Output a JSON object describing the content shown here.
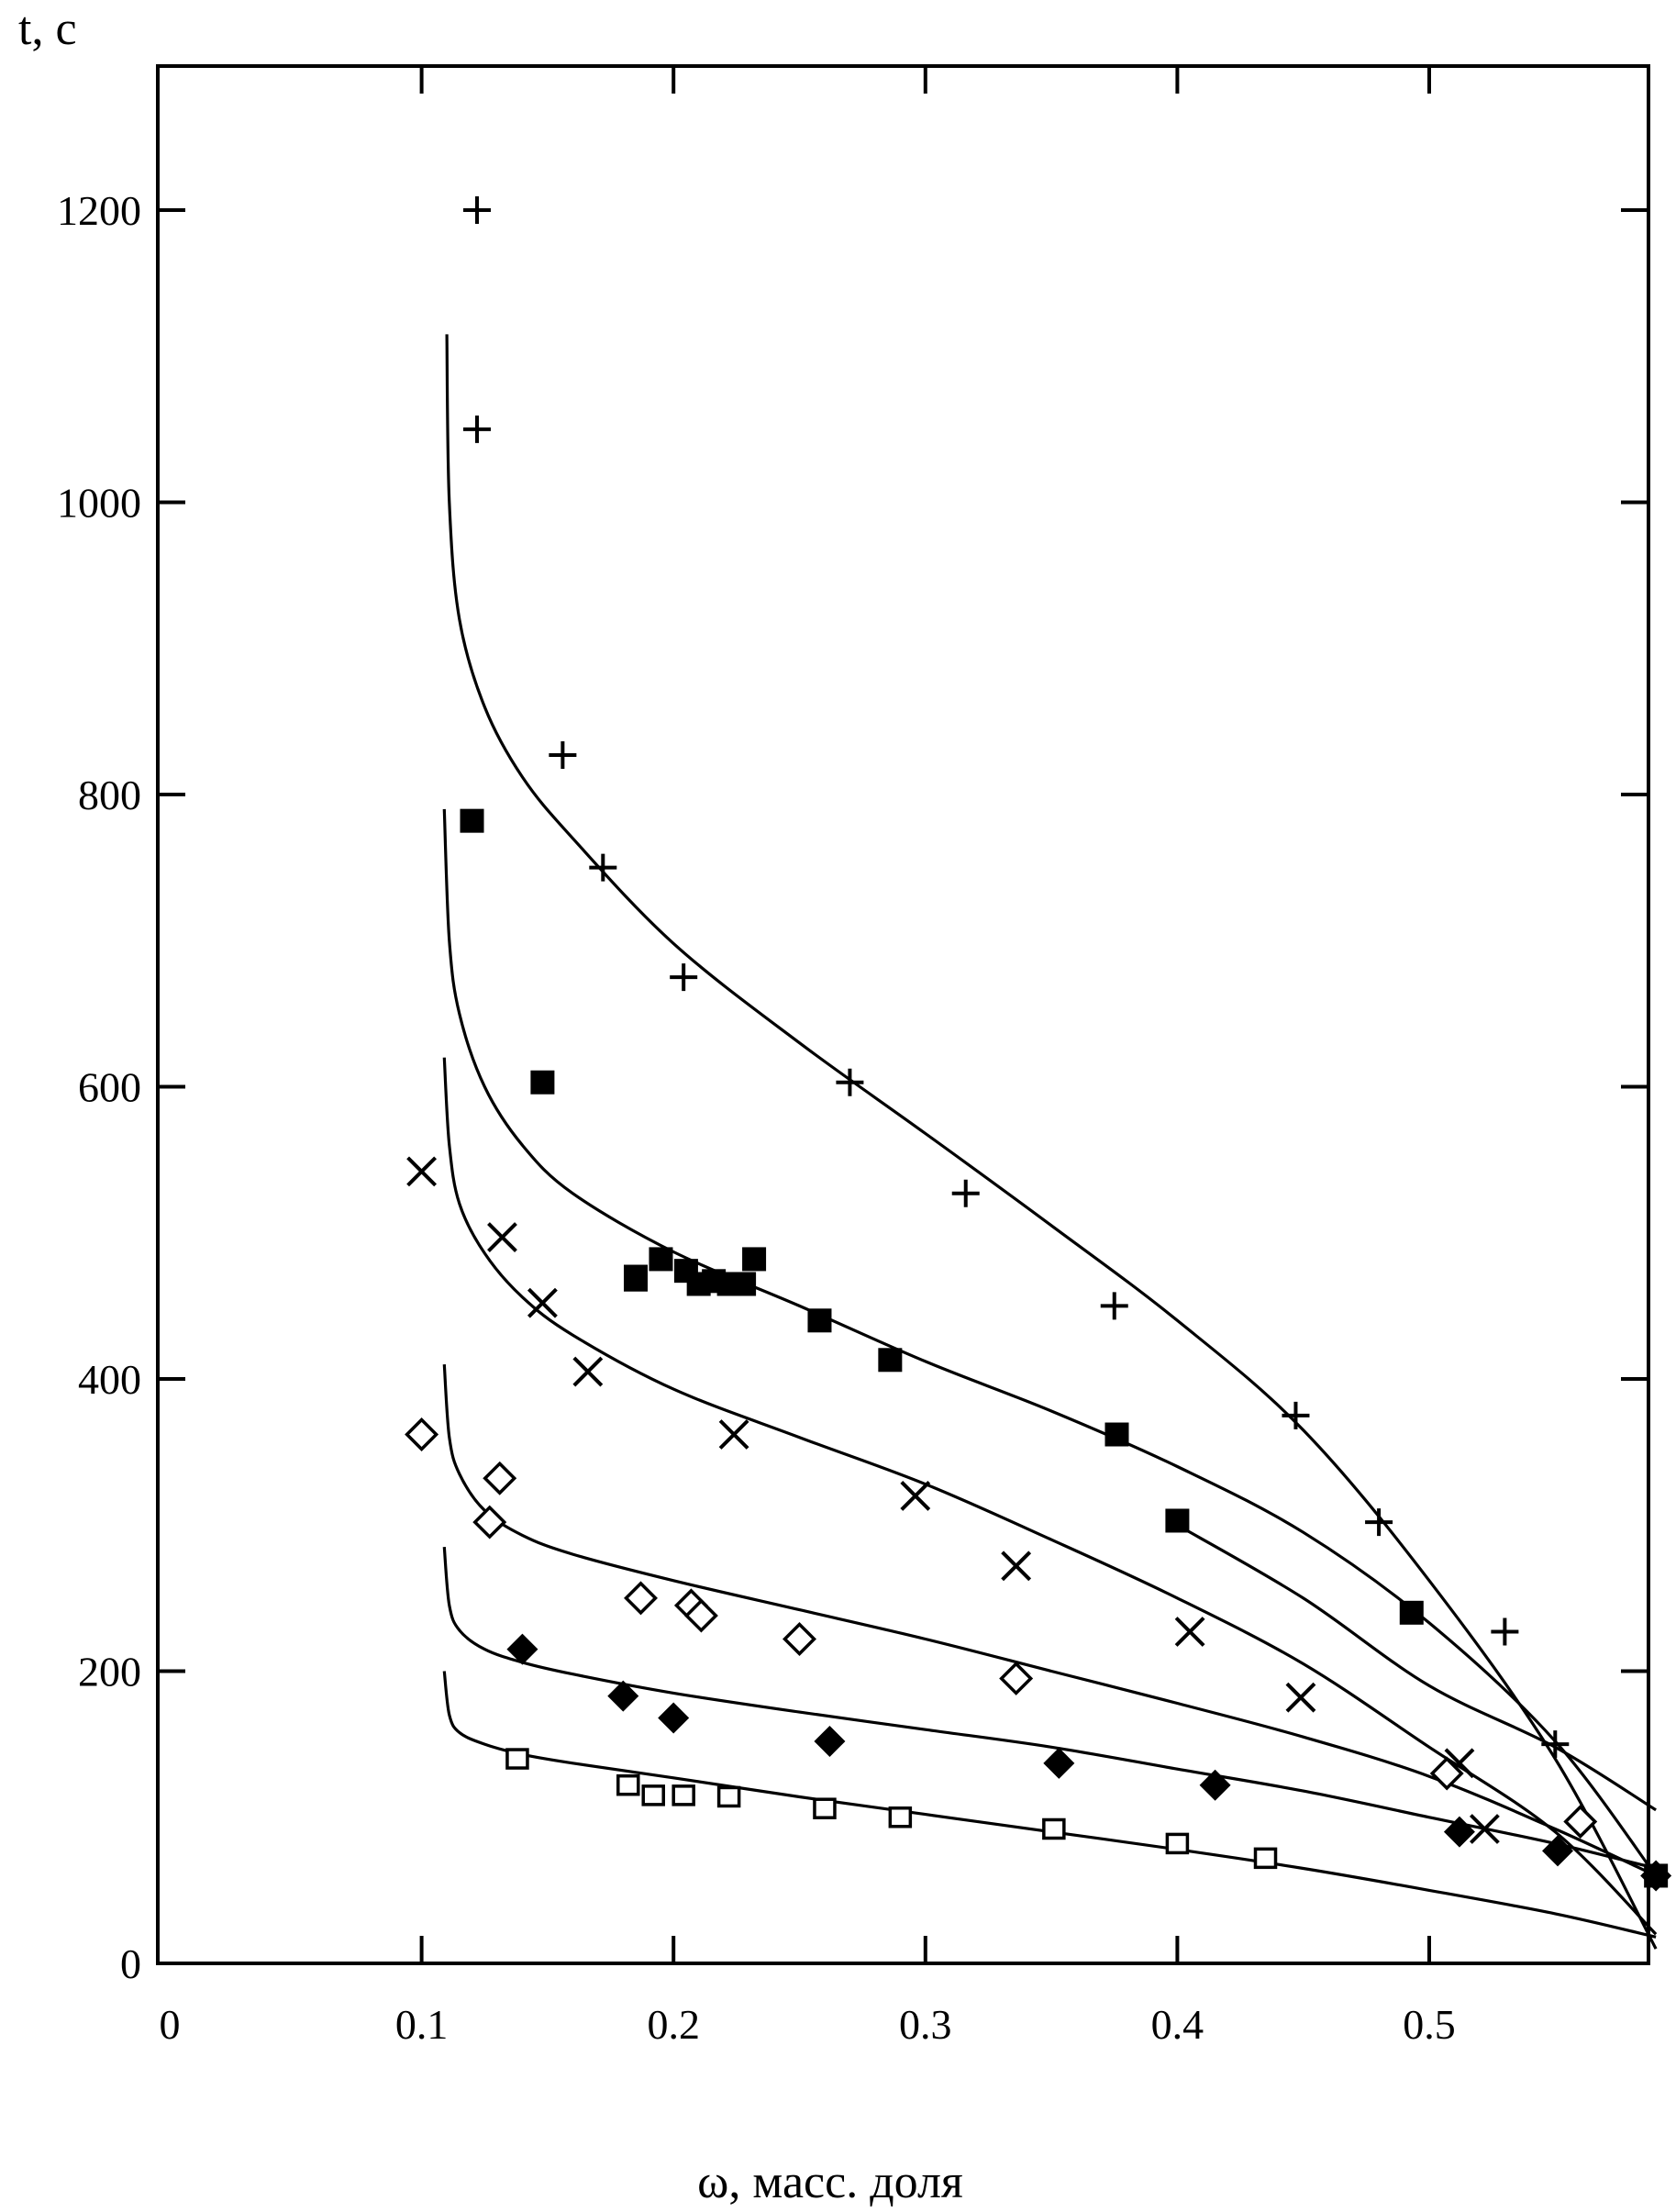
{
  "chart_data": {
    "type": "scatter",
    "title": "",
    "xlabel": "ω, масс. доля",
    "ylabel": "t, с",
    "xlim": [
      0,
      0.59
    ],
    "ylim": [
      0,
      1300
    ],
    "xticks": [
      0,
      0.1,
      0.2,
      0.3,
      0.4,
      0.5
    ],
    "xtick_labels": [
      "0",
      "0.1",
      "0.2",
      "0.3",
      "0.4",
      "0.5"
    ],
    "yticks": [
      0,
      200,
      400,
      600,
      800,
      1000,
      1200
    ],
    "ytick_labels": [
      "0",
      "200",
      "400",
      "600",
      "800",
      "1000",
      "1200"
    ],
    "grid": false,
    "legend": "none",
    "series": [
      {
        "marker": "plus",
        "points": [
          [
            0.122,
            1200
          ],
          [
            0.122,
            1050
          ],
          [
            0.156,
            827
          ],
          [
            0.172,
            750
          ],
          [
            0.204,
            675
          ],
          [
            0.27,
            603
          ],
          [
            0.316,
            527
          ],
          [
            0.375,
            450
          ],
          [
            0.447,
            375
          ],
          [
            0.48,
            302
          ],
          [
            0.53,
            227
          ],
          [
            0.55,
            150
          ]
        ],
        "fit": [
          [
            0.11,
            1115
          ],
          [
            0.111,
            1000
          ],
          [
            0.115,
            920
          ],
          [
            0.125,
            860
          ],
          [
            0.14,
            812
          ],
          [
            0.16,
            770
          ],
          [
            0.2,
            698
          ],
          [
            0.25,
            630
          ],
          [
            0.3,
            568
          ],
          [
            0.35,
            505
          ],
          [
            0.4,
            440
          ],
          [
            0.45,
            365
          ],
          [
            0.5,
            262
          ],
          [
            0.55,
            140
          ],
          [
            0.59,
            10
          ]
        ]
      },
      {
        "marker": "filled-square",
        "points": [
          [
            0.12,
            782
          ],
          [
            0.148,
            603
          ],
          [
            0.185,
            468
          ],
          [
            0.185,
            470
          ],
          [
            0.195,
            482
          ],
          [
            0.205,
            474
          ],
          [
            0.21,
            465
          ],
          [
            0.216,
            467
          ],
          [
            0.222,
            465
          ],
          [
            0.228,
            465
          ],
          [
            0.232,
            482
          ],
          [
            0.258,
            440
          ],
          [
            0.286,
            413
          ],
          [
            0.376,
            362
          ],
          [
            0.4,
            303
          ],
          [
            0.493,
            240
          ],
          [
            0.59,
            60
          ]
        ],
        "fit": [
          [
            0.109,
            790
          ],
          [
            0.111,
            700
          ],
          [
            0.115,
            650
          ],
          [
            0.125,
            600
          ],
          [
            0.14,
            560
          ],
          [
            0.16,
            527
          ],
          [
            0.2,
            487
          ],
          [
            0.25,
            450
          ],
          [
            0.3,
            412
          ],
          [
            0.35,
            378
          ],
          [
            0.4,
            340
          ],
          [
            0.45,
            295
          ],
          [
            0.5,
            233
          ],
          [
            0.55,
            152
          ],
          [
            0.59,
            60
          ]
        ]
      },
      {
        "marker": "cross",
        "points": [
          [
            0.1,
            542
          ],
          [
            0.132,
            497
          ],
          [
            0.148,
            452
          ],
          [
            0.166,
            405
          ],
          [
            0.224,
            362
          ],
          [
            0.296,
            320
          ],
          [
            0.336,
            272
          ],
          [
            0.405,
            227
          ],
          [
            0.449,
            182
          ],
          [
            0.512,
            137
          ],
          [
            0.522,
            92
          ]
        ],
        "fit": [
          [
            0.109,
            620
          ],
          [
            0.111,
            560
          ],
          [
            0.115,
            520
          ],
          [
            0.125,
            486
          ],
          [
            0.14,
            456
          ],
          [
            0.16,
            430
          ],
          [
            0.2,
            393
          ],
          [
            0.25,
            360
          ],
          [
            0.3,
            328
          ],
          [
            0.35,
            290
          ],
          [
            0.4,
            250
          ],
          [
            0.45,
            205
          ],
          [
            0.5,
            148
          ],
          [
            0.55,
            90
          ],
          [
            0.59,
            20
          ]
        ]
      },
      {
        "marker": "open-diamond",
        "points": [
          [
            0.1,
            362
          ],
          [
            0.127,
            302
          ],
          [
            0.131,
            332
          ],
          [
            0.187,
            250
          ],
          [
            0.207,
            245
          ],
          [
            0.211,
            238
          ],
          [
            0.25,
            222
          ],
          [
            0.336,
            195
          ],
          [
            0.507,
            130
          ],
          [
            0.56,
            97
          ]
        ],
        "fit": [
          [
            0.109,
            410
          ],
          [
            0.111,
            360
          ],
          [
            0.115,
            335
          ],
          [
            0.125,
            310
          ],
          [
            0.14,
            293
          ],
          [
            0.16,
            280
          ],
          [
            0.2,
            262
          ],
          [
            0.25,
            242
          ],
          [
            0.3,
            222
          ],
          [
            0.35,
            200
          ],
          [
            0.4,
            178
          ],
          [
            0.45,
            155
          ],
          [
            0.5,
            128
          ],
          [
            0.55,
            92
          ],
          [
            0.59,
            60
          ]
        ]
      },
      {
        "marker": "filled-diamond",
        "points": [
          [
            0.14,
            215
          ],
          [
            0.18,
            183
          ],
          [
            0.2,
            168
          ],
          [
            0.262,
            152
          ],
          [
            0.353,
            137
          ],
          [
            0.415,
            122
          ],
          [
            0.512,
            90
          ],
          [
            0.551,
            77
          ],
          [
            0.59,
            60
          ]
        ],
        "fit": [
          [
            0.109,
            285
          ],
          [
            0.111,
            245
          ],
          [
            0.115,
            228
          ],
          [
            0.125,
            215
          ],
          [
            0.14,
            206
          ],
          [
            0.16,
            198
          ],
          [
            0.2,
            185
          ],
          [
            0.25,
            172
          ],
          [
            0.3,
            160
          ],
          [
            0.35,
            148
          ],
          [
            0.4,
            133
          ],
          [
            0.45,
            118
          ],
          [
            0.5,
            100
          ],
          [
            0.55,
            82
          ],
          [
            0.59,
            65
          ]
        ]
      },
      {
        "marker": "open-square",
        "points": [
          [
            0.138,
            140
          ],
          [
            0.182,
            122
          ],
          [
            0.192,
            115
          ],
          [
            0.204,
            115
          ],
          [
            0.222,
            114
          ],
          [
            0.26,
            106
          ],
          [
            0.29,
            100
          ],
          [
            0.351,
            92
          ],
          [
            0.4,
            82
          ],
          [
            0.435,
            72
          ]
        ],
        "fit": [
          [
            0.109,
            200
          ],
          [
            0.111,
            170
          ],
          [
            0.115,
            158
          ],
          [
            0.125,
            150
          ],
          [
            0.14,
            143
          ],
          [
            0.16,
            137
          ],
          [
            0.2,
            127
          ],
          [
            0.25,
            114
          ],
          [
            0.3,
            102
          ],
          [
            0.35,
            90
          ],
          [
            0.4,
            78
          ],
          [
            0.45,
            65
          ],
          [
            0.5,
            50
          ],
          [
            0.55,
            34
          ],
          [
            0.59,
            18
          ]
        ]
      }
    ],
    "extra_lines": [
      {
        "points": [
          [
            0.4,
            300
          ],
          [
            0.45,
            250
          ],
          [
            0.5,
            190
          ],
          [
            0.55,
            148
          ],
          [
            0.59,
            105
          ]
        ]
      }
    ]
  }
}
